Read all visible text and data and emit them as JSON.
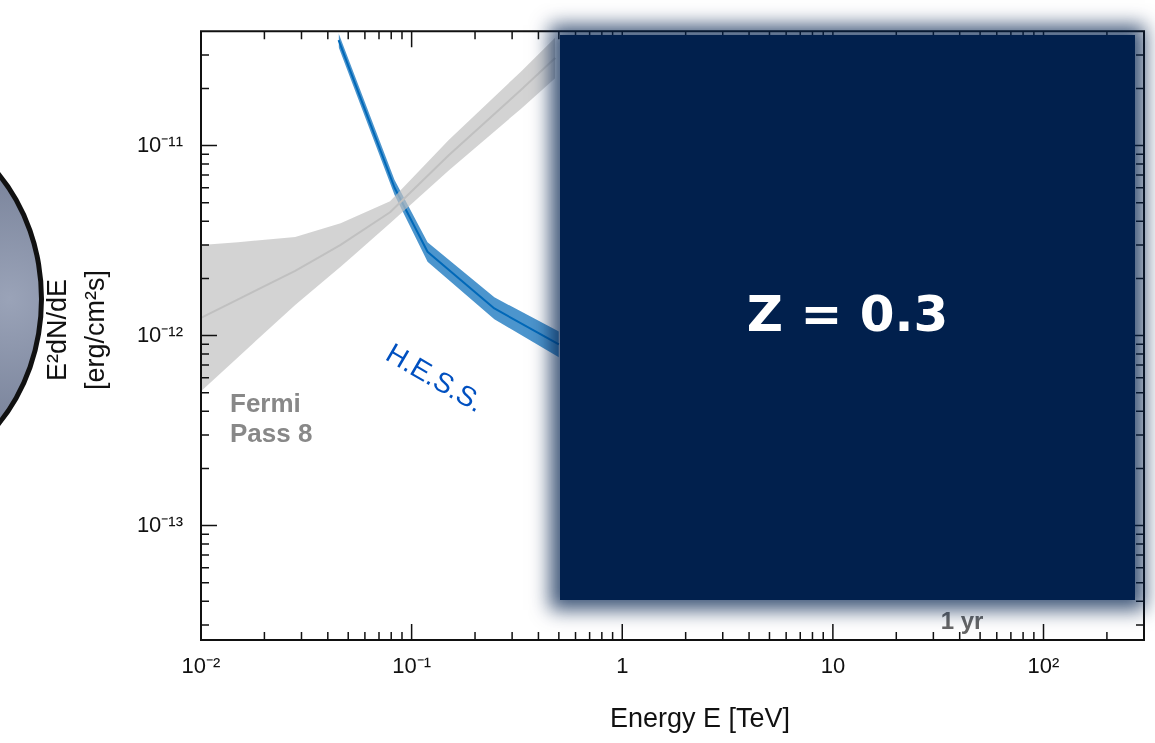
{
  "chart_data": {
    "type": "line",
    "xlabel": "Energy E [TeV]",
    "ylabel": "E²dN/dE\n[erg/cm²s]",
    "log": "xy",
    "xlim": [
      0.01,
      300
    ],
    "ylim": [
      2.5e-14,
      4e-11
    ],
    "xticks": [
      {
        "value": 0.01,
        "label": "10⁻²"
      },
      {
        "value": 0.02,
        "label": null
      },
      {
        "value": 0.03,
        "label": null
      },
      {
        "value": 0.04,
        "label": null
      },
      {
        "value": 0.05,
        "label": null
      },
      {
        "value": 0.06,
        "label": null
      },
      {
        "value": 0.07,
        "label": null
      },
      {
        "value": 0.08,
        "label": null
      },
      {
        "value": 0.09,
        "label": null
      },
      {
        "value": 0.1,
        "label": "10⁻¹"
      },
      {
        "value": 0.2,
        "label": null
      },
      {
        "value": 0.3,
        "label": null
      },
      {
        "value": 0.4,
        "label": null
      },
      {
        "value": 0.5,
        "label": null
      },
      {
        "value": 0.6,
        "label": null
      },
      {
        "value": 0.7,
        "label": null
      },
      {
        "value": 0.8,
        "label": null
      },
      {
        "value": 0.9,
        "label": null
      },
      1,
      {
        "value": 2,
        "label": null
      },
      {
        "value": 3,
        "label": null
      },
      {
        "value": 4,
        "label": null
      },
      {
        "value": 5,
        "label": null
      },
      {
        "value": 6,
        "label": null
      },
      {
        "value": 7,
        "label": null
      },
      {
        "value": 8,
        "label": null
      },
      {
        "value": 9,
        "label": null
      },
      10,
      {
        "value": 20,
        "label": null
      },
      {
        "value": 30,
        "label": null
      },
      {
        "value": 40,
        "label": null
      },
      {
        "value": 50,
        "label": null
      },
      {
        "value": 60,
        "label": null
      },
      {
        "value": 70,
        "label": null
      },
      {
        "value": 80,
        "label": null
      },
      {
        "value": 90,
        "label": null
      },
      {
        "value": 100,
        "label": "10²"
      },
      {
        "value": 200,
        "label": null
      }
    ],
    "yticks": [
      {
        "value": 3e-14,
        "label": null
      },
      {
        "value": 4e-14,
        "label": null
      },
      {
        "value": 5e-14,
        "label": null
      },
      {
        "value": 6e-14,
        "label": null
      },
      {
        "value": 7e-14,
        "label": null
      },
      {
        "value": 8e-14,
        "label": null
      },
      {
        "value": 9e-14,
        "label": null
      },
      {
        "value": 1e-13,
        "label": "10⁻¹³"
      },
      {
        "value": 2e-13,
        "label": null
      },
      {
        "value": 3e-13,
        "label": null
      },
      {
        "value": 4e-13,
        "label": null
      },
      {
        "value": 5e-13,
        "label": null
      },
      {
        "value": 6e-13,
        "label": null
      },
      {
        "value": 7e-13,
        "label": null
      },
      {
        "value": 8e-13,
        "label": null
      },
      {
        "value": 9e-13,
        "label": null
      },
      {
        "value": 1e-12,
        "label": "10⁻¹²"
      },
      {
        "value": 2e-12,
        "label": null
      },
      {
        "value": 3e-12,
        "label": null
      },
      {
        "value": 4e-12,
        "label": null
      },
      {
        "value": 5e-12,
        "label": null
      },
      {
        "value": 6e-12,
        "label": null
      },
      {
        "value": 7e-12,
        "label": null
      },
      {
        "value": 8e-12,
        "label": null
      },
      {
        "value": 9e-12,
        "label": null
      },
      {
        "value": 1e-11,
        "label": "10⁻¹¹"
      },
      {
        "value": 2e-11,
        "label": null
      },
      {
        "value": 3e-11,
        "label": null
      }
    ],
    "series": [
      {
        "name": "Fermi Pass 8",
        "color": "#c0c0c0",
        "x": [
          0.01,
          0.015,
          0.028,
          0.046,
          0.079,
          0.15,
          0.33,
          0.48
        ],
        "values": [
          1.24e-12,
          1.55e-12,
          2.19e-12,
          3e-12,
          4.46e-12,
          8.9e-12,
          1.96e-11,
          2.89e-11
        ],
        "upper": [
          3e-12,
          3.1e-12,
          3.3e-12,
          3.9e-12,
          5.1e-12,
          1.07e-11,
          2.45e-11,
          3.7e-11
        ],
        "lower": [
          5.1e-13,
          7.7e-13,
          1.45e-12,
          2.3e-12,
          3.9e-12,
          7.4e-12,
          1.56e-11,
          2.26e-11
        ]
      },
      {
        "name": "H.E.S.S.",
        "color": "#0068b8",
        "x": [
          0.045,
          0.083,
          0.119,
          0.247,
          0.5
        ],
        "values": [
          3.59e-11,
          6e-12,
          2.76e-12,
          1.39e-12,
          9e-13
        ],
        "upper": [
          3.9e-11,
          6.6e-12,
          3.1e-12,
          1.59e-12,
          1.05e-12
        ],
        "lower": [
          3.3e-11,
          5.5e-12,
          2.45e-12,
          1.22e-12,
          7.7e-13
        ]
      }
    ],
    "annotations": [
      "Z = 0.3",
      "1 yr"
    ]
  }
}
